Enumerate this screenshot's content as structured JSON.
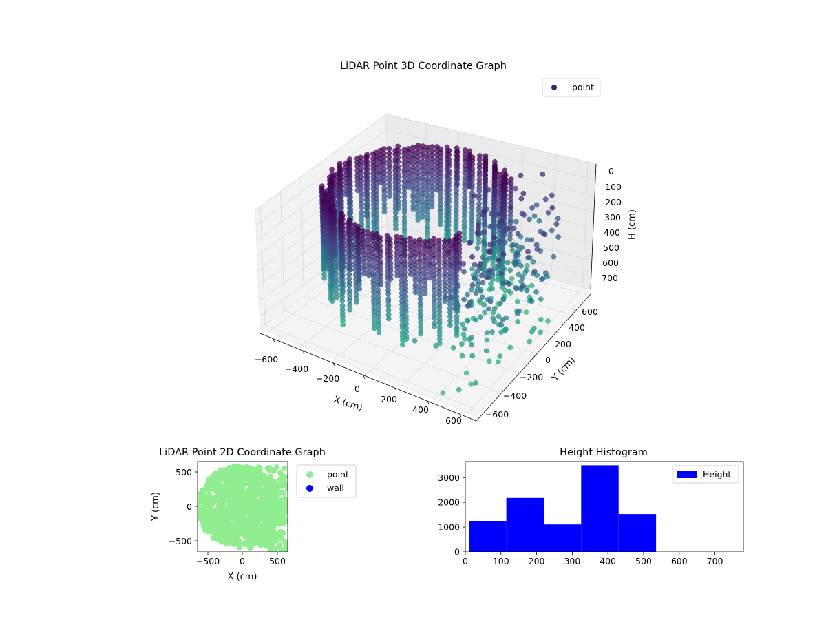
{
  "chart_data": [
    {
      "type": "scatter",
      "title": "LiDAR Point 3D Coordinate Graph",
      "xlabel": "X (cm)",
      "ylabel": "Y (cm)",
      "zlabel": "H (cm)",
      "xlim": [
        -650,
        650
      ],
      "ylim": [
        -650,
        650
      ],
      "zlim": [
        780,
        0
      ],
      "x_ticks": [
        "−600",
        "−400",
        "−200",
        "0",
        "200",
        "400",
        "600"
      ],
      "y_ticks": [
        "−600",
        "−400",
        "−200",
        "0",
        "200",
        "400",
        "600"
      ],
      "z_ticks": [
        "0",
        "100",
        "200",
        "300",
        "400",
        "500",
        "600",
        "700"
      ],
      "grid": true,
      "legend": {
        "position": "top-right",
        "entries": [
          "point"
        ]
      },
      "colormap": "viridis",
      "series": [
        {
          "name": "point",
          "description_values": "dense cylindrical wall of points around the scan origin, radius roughly 550 cm, heights 0-550 cm; sparser points toward +X/+Y",
          "ring_radius": 550,
          "ring_angle_range_deg": [
            60,
            300
          ],
          "sparse_points": [
            [
              450,
              -650,
              720
            ],
            [
              520,
              -600,
              700
            ],
            [
              600,
              -560,
              650
            ],
            [
              350,
              -350,
              650
            ],
            [
              420,
              -300,
              600
            ],
            [
              500,
              -250,
              560
            ],
            [
              560,
              -200,
              520
            ],
            [
              600,
              -100,
              480
            ],
            [
              630,
              0,
              460
            ],
            [
              620,
              150,
              420
            ],
            [
              600,
              300,
              380
            ],
            [
              560,
              420,
              340
            ],
            [
              500,
              520,
              300
            ],
            [
              300,
              -450,
              600
            ],
            [
              200,
              -500,
              580
            ]
          ]
        }
      ]
    },
    {
      "type": "scatter",
      "title": "LiDAR Point 2D Coordinate Graph",
      "xlabel": "X (cm)",
      "ylabel": "Y (cm)",
      "xlim": [
        -650,
        650
      ],
      "ylim": [
        -650,
        650
      ],
      "x_ticks": [
        "−500",
        "0",
        "500"
      ],
      "y_ticks": [
        "−500",
        "0",
        "500"
      ],
      "legend": {
        "position": "right",
        "entries": [
          "point",
          "wall"
        ]
      },
      "series": [
        {
          "name": "point",
          "color": "#90ee90",
          "region_radius": 560
        },
        {
          "name": "wall",
          "color": "#0000ff",
          "values": []
        }
      ]
    },
    {
      "type": "bar",
      "title": "Height Histogram",
      "xlabel": "",
      "ylabel": "",
      "xlim": [
        0,
        780
      ],
      "ylim": [
        0,
        3650
      ],
      "x_ticks": [
        "0",
        "100",
        "200",
        "300",
        "400",
        "500",
        "600",
        "700"
      ],
      "y_ticks": [
        "0",
        "1000",
        "2000",
        "3000"
      ],
      "legend": {
        "position": "top-right",
        "entries": [
          "Height"
        ]
      },
      "bins": [
        {
          "start": 10,
          "end": 115,
          "count": 1250
        },
        {
          "start": 115,
          "end": 220,
          "count": 2180
        },
        {
          "start": 220,
          "end": 325,
          "count": 1110
        },
        {
          "start": 325,
          "end": 430,
          "count": 3500
        },
        {
          "start": 430,
          "end": 535,
          "count": 1530
        }
      ],
      "series": [
        {
          "name": "Height",
          "color": "#0000ff"
        }
      ]
    }
  ]
}
